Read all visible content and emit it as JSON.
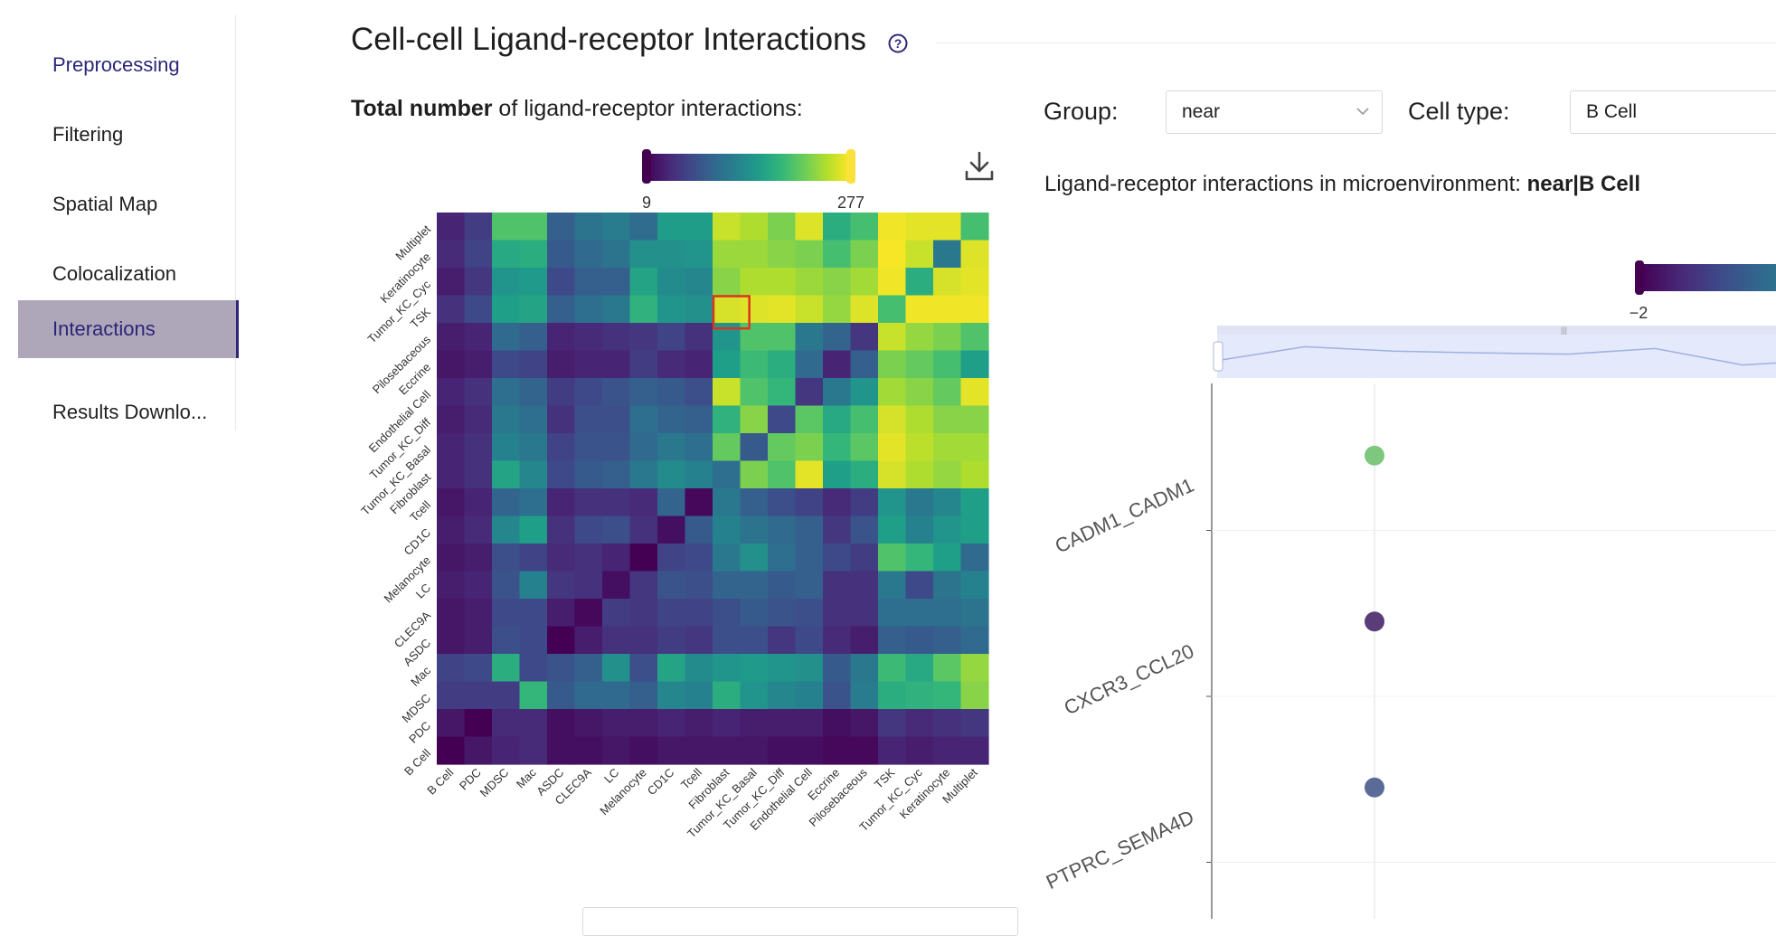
{
  "sidebar": {
    "items": [
      {
        "label": "Preprocessing",
        "selected": false
      },
      {
        "label": "Filtering",
        "selected": false
      },
      {
        "label": "Spatial Map",
        "selected": false
      },
      {
        "label": "Colocalization",
        "selected": false
      },
      {
        "label": "Interactions",
        "selected": true
      },
      {
        "label": "Results Downlo...",
        "selected": false
      }
    ]
  },
  "header": {
    "title": "Cell-cell Ligand-receptor Interactions",
    "help_icon": "question-circle-icon"
  },
  "left_panel": {
    "subtitle_bold": "Total number",
    "subtitle_rest": " of ligand-receptor interactions:",
    "download_icon": "download-icon"
  },
  "controls": {
    "group_label": "Group:",
    "group_value": "near",
    "celltype_label": "Cell type:",
    "celltype_value": "B Cell"
  },
  "micro_title": {
    "prefix": "Ligand-receptor interactions in microenvironment: ",
    "bold": "near|B Cell"
  },
  "colors": {
    "accent": "#2d2679",
    "selected_bg": "#aea6b9",
    "highlight_box": "#e0321e"
  },
  "chart_data": [
    {
      "type": "heatmap",
      "colorscale": "viridis",
      "colorbar": {
        "min": 9,
        "max": 277,
        "min_label": "9",
        "max_label": "277"
      },
      "x_categories": [
        "B Cell",
        "PDC",
        "MDSC",
        "Mac",
        "ASDC",
        "CLEC9A",
        "LC",
        "Melanocyte",
        "CD1C",
        "Tcell",
        "Fibroblast",
        "Tumor_KC_Basal",
        "Tumor_KC_Diff",
        "Endothelial Cell",
        "Eccrine",
        "Pilosebaceous",
        "TSK",
        "Tumor_KC_Cyc",
        "Keratinocyte",
        "Multiplet"
      ],
      "y_categories": [
        "Multiplet",
        "Keratinocyte",
        "Tumor_KC_Cyc",
        "TSK",
        "Pilosebaceous",
        "Eccrine",
        "Endothelial Cell",
        "Tumor_KC_Diff",
        "Tumor_KC_Basal",
        "Fibroblast",
        "Tcell",
        "CD1C",
        "Melanocyte",
        "LC",
        "CLEC9A",
        "ASDC",
        "Mac",
        "MDSC",
        "PDC",
        "B Cell"
      ],
      "values_normalized": [
        [
          0.1,
          0.18,
          0.72,
          0.72,
          0.3,
          0.38,
          0.42,
          0.35,
          0.55,
          0.55,
          0.92,
          0.88,
          0.8,
          0.95,
          0.62,
          0.7,
          0.98,
          0.96,
          0.96,
          0.7
        ],
        [
          0.12,
          0.2,
          0.6,
          0.62,
          0.28,
          0.34,
          0.38,
          0.5,
          0.5,
          0.52,
          0.85,
          0.85,
          0.82,
          0.8,
          0.7,
          0.8,
          0.99,
          0.92,
          0.4,
          0.95
        ],
        [
          0.08,
          0.16,
          0.52,
          0.54,
          0.22,
          0.3,
          0.3,
          0.58,
          0.48,
          0.46,
          0.82,
          0.88,
          0.88,
          0.85,
          0.82,
          0.86,
          0.98,
          0.62,
          0.94,
          0.96
        ],
        [
          0.14,
          0.22,
          0.56,
          0.58,
          0.3,
          0.36,
          0.4,
          0.64,
          0.52,
          0.5,
          0.94,
          0.95,
          0.96,
          0.92,
          0.84,
          0.95,
          0.7,
          0.98,
          0.98,
          0.98
        ],
        [
          0.08,
          0.1,
          0.34,
          0.3,
          0.1,
          0.12,
          0.14,
          0.16,
          0.2,
          0.14,
          0.52,
          0.72,
          0.72,
          0.4,
          0.32,
          0.16,
          0.92,
          0.84,
          0.8,
          0.72
        ],
        [
          0.06,
          0.08,
          0.22,
          0.2,
          0.08,
          0.1,
          0.1,
          0.18,
          0.12,
          0.1,
          0.56,
          0.68,
          0.62,
          0.34,
          0.1,
          0.3,
          0.8,
          0.76,
          0.7,
          0.56
        ],
        [
          0.1,
          0.14,
          0.36,
          0.32,
          0.18,
          0.22,
          0.26,
          0.3,
          0.28,
          0.24,
          0.92,
          0.72,
          0.66,
          0.16,
          0.4,
          0.52,
          0.86,
          0.82,
          0.76,
          0.96
        ],
        [
          0.08,
          0.12,
          0.4,
          0.36,
          0.14,
          0.24,
          0.24,
          0.36,
          0.32,
          0.3,
          0.64,
          0.82,
          0.22,
          0.74,
          0.6,
          0.7,
          0.94,
          0.88,
          0.82,
          0.82
        ],
        [
          0.1,
          0.14,
          0.44,
          0.4,
          0.2,
          0.26,
          0.26,
          0.34,
          0.4,
          0.36,
          0.76,
          0.28,
          0.76,
          0.8,
          0.66,
          0.74,
          0.96,
          0.9,
          0.86,
          0.86
        ],
        [
          0.1,
          0.14,
          0.58,
          0.46,
          0.22,
          0.28,
          0.3,
          0.4,
          0.48,
          0.44,
          0.36,
          0.8,
          0.72,
          0.96,
          0.56,
          0.62,
          0.94,
          0.88,
          0.84,
          0.88
        ],
        [
          0.06,
          0.1,
          0.32,
          0.36,
          0.1,
          0.14,
          0.14,
          0.12,
          0.32,
          0.02,
          0.4,
          0.3,
          0.24,
          0.2,
          0.12,
          0.18,
          0.52,
          0.4,
          0.46,
          0.56
        ],
        [
          0.08,
          0.12,
          0.46,
          0.56,
          0.14,
          0.22,
          0.24,
          0.14,
          0.04,
          0.28,
          0.44,
          0.38,
          0.34,
          0.3,
          0.16,
          0.26,
          0.56,
          0.44,
          0.52,
          0.56
        ],
        [
          0.06,
          0.08,
          0.24,
          0.2,
          0.12,
          0.14,
          0.1,
          0.0,
          0.2,
          0.22,
          0.4,
          0.5,
          0.36,
          0.3,
          0.22,
          0.18,
          0.72,
          0.66,
          0.56,
          0.34
        ],
        [
          0.08,
          0.1,
          0.26,
          0.44,
          0.16,
          0.14,
          0.04,
          0.16,
          0.26,
          0.24,
          0.32,
          0.32,
          0.28,
          0.3,
          0.14,
          0.14,
          0.4,
          0.22,
          0.38,
          0.44
        ],
        [
          0.06,
          0.08,
          0.22,
          0.22,
          0.08,
          0.02,
          0.18,
          0.16,
          0.2,
          0.2,
          0.24,
          0.28,
          0.26,
          0.24,
          0.14,
          0.14,
          0.36,
          0.36,
          0.36,
          0.38
        ],
        [
          0.06,
          0.08,
          0.24,
          0.22,
          0.0,
          0.08,
          0.14,
          0.14,
          0.18,
          0.16,
          0.24,
          0.24,
          0.16,
          0.22,
          0.12,
          0.08,
          0.3,
          0.28,
          0.3,
          0.34
        ],
        [
          0.2,
          0.22,
          0.62,
          0.22,
          0.26,
          0.3,
          0.5,
          0.24,
          0.58,
          0.48,
          0.52,
          0.54,
          0.52,
          0.5,
          0.28,
          0.4,
          0.68,
          0.6,
          0.74,
          0.84
        ],
        [
          0.18,
          0.18,
          0.18,
          0.66,
          0.28,
          0.34,
          0.34,
          0.3,
          0.46,
          0.44,
          0.62,
          0.52,
          0.46,
          0.44,
          0.26,
          0.42,
          0.62,
          0.64,
          0.66,
          0.82
        ],
        [
          0.06,
          0.0,
          0.12,
          0.12,
          0.04,
          0.06,
          0.08,
          0.08,
          0.1,
          0.08,
          0.1,
          0.08,
          0.08,
          0.08,
          0.04,
          0.06,
          0.16,
          0.12,
          0.14,
          0.16
        ],
        [
          0.0,
          0.06,
          0.1,
          0.12,
          0.04,
          0.04,
          0.06,
          0.04,
          0.06,
          0.06,
          0.06,
          0.06,
          0.04,
          0.04,
          0.02,
          0.02,
          0.1,
          0.08,
          0.1,
          0.1
        ]
      ],
      "highlight": {
        "x": "Fibroblast",
        "y": "TSK"
      }
    },
    {
      "type": "scatter",
      "colorbar": {
        "min_label": "−2"
      },
      "y_categories": [
        "CADM1_CADM1",
        "CXCR3_CCL20",
        "PTPRC_SEMA4D"
      ],
      "points": [
        {
          "y": "CADM1_CADM1",
          "color": "#7ec77e"
        },
        {
          "y": "CXCR3_CCL20",
          "color": "#5a3c78"
        },
        {
          "y": "PTPRC_SEMA4D",
          "color": "#5b6b98"
        }
      ],
      "range_slider_trend": [
        0.4,
        0.72,
        0.62,
        0.58,
        0.55,
        0.68,
        0.3,
        0.42,
        0.45
      ]
    }
  ]
}
